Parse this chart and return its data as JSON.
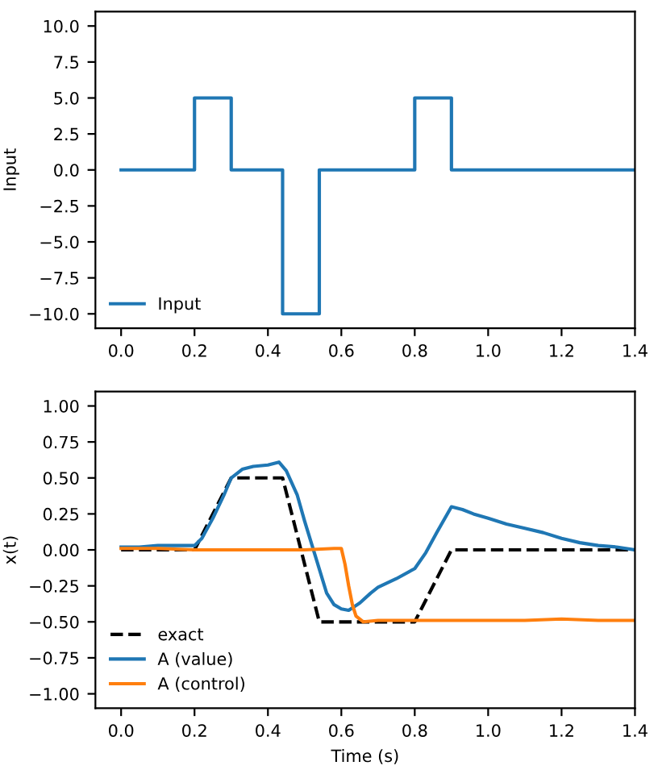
{
  "chart_data": [
    {
      "type": "step",
      "ylabel": "Input",
      "legend": "bottom left",
      "xlim": [
        -0.07,
        1.4
      ],
      "ylim": [
        -11,
        11
      ],
      "xticks": [
        {
          "value": 0,
          "label": "0.0"
        },
        {
          "value": 0.2,
          "label": "0.2"
        },
        {
          "value": 0.4,
          "label": "0.4"
        },
        {
          "value": 0.6,
          "label": "0.6"
        },
        {
          "value": 0.8,
          "label": "0.8"
        },
        {
          "value": 1.0,
          "label": "1.0"
        },
        {
          "value": 1.2,
          "label": "1.2"
        },
        {
          "value": 1.4,
          "label": "1.4"
        }
      ],
      "yticks": [
        {
          "value": -10,
          "label": "−10.0"
        },
        {
          "value": -7.5,
          "label": "−7.5"
        },
        {
          "value": -5,
          "label": "−5.0"
        },
        {
          "value": -2.5,
          "label": "−2.5"
        },
        {
          "value": 0,
          "label": "0.0"
        },
        {
          "value": 2.5,
          "label": "2.5"
        },
        {
          "value": 5,
          "label": "5.0"
        },
        {
          "value": 7.5,
          "label": "7.5"
        },
        {
          "value": 10,
          "label": "10.0"
        }
      ],
      "series": [
        {
          "name": "Input",
          "color": "#1f77b4",
          "x": [
            0,
            0.2,
            0.3,
            0.44,
            0.54,
            0.8,
            0.9,
            1.4
          ],
          "values": [
            0,
            5,
            0,
            -10,
            0,
            5,
            0,
            0
          ]
        }
      ]
    },
    {
      "type": "line",
      "ylabel": "x(t)",
      "xlabel": "Time (s)",
      "legend": "bottom left",
      "xlim": [
        -0.07,
        1.4
      ],
      "ylim": [
        -1.1,
        1.1
      ],
      "xticks": [
        {
          "value": 0,
          "label": "0.0"
        },
        {
          "value": 0.2,
          "label": "0.2"
        },
        {
          "value": 0.4,
          "label": "0.4"
        },
        {
          "value": 0.6,
          "label": "0.6"
        },
        {
          "value": 0.8,
          "label": "0.8"
        },
        {
          "value": 1.0,
          "label": "1.0"
        },
        {
          "value": 1.2,
          "label": "1.2"
        },
        {
          "value": 1.4,
          "label": "1.4"
        }
      ],
      "yticks": [
        {
          "value": -1,
          "label": "−1.00"
        },
        {
          "value": -0.75,
          "label": "−0.75"
        },
        {
          "value": -0.5,
          "label": "−0.50"
        },
        {
          "value": -0.25,
          "label": "−0.25"
        },
        {
          "value": 0,
          "label": "0.00"
        },
        {
          "value": 0.25,
          "label": "0.25"
        },
        {
          "value": 0.5,
          "label": "0.50"
        },
        {
          "value": 0.75,
          "label": "0.75"
        },
        {
          "value": 1,
          "label": "1.00"
        }
      ],
      "series": [
        {
          "name": "exact",
          "color": "#000000",
          "line_style": "dashed",
          "x": [
            0,
            0.2,
            0.3,
            0.44,
            0.54,
            0.8,
            0.9,
            1.4
          ],
          "values": [
            0,
            0,
            0.5,
            0.5,
            -0.5,
            -0.5,
            0,
            0
          ]
        },
        {
          "name": "A (value)",
          "color": "#1f77b4",
          "x": [
            0,
            0.05,
            0.1,
            0.15,
            0.2,
            0.22,
            0.25,
            0.28,
            0.3,
            0.33,
            0.36,
            0.4,
            0.43,
            0.45,
            0.48,
            0.5,
            0.53,
            0.56,
            0.58,
            0.6,
            0.62,
            0.65,
            0.68,
            0.7,
            0.75,
            0.8,
            0.83,
            0.86,
            0.9,
            0.93,
            0.96,
            1.0,
            1.05,
            1.1,
            1.15,
            1.2,
            1.25,
            1.3,
            1.35,
            1.4
          ],
          "values": [
            0.02,
            0.02,
            0.03,
            0.03,
            0.03,
            0.08,
            0.22,
            0.38,
            0.5,
            0.56,
            0.58,
            0.59,
            0.61,
            0.55,
            0.38,
            0.2,
            -0.05,
            -0.3,
            -0.38,
            -0.41,
            -0.42,
            -0.37,
            -0.3,
            -0.26,
            -0.2,
            -0.13,
            -0.02,
            0.12,
            0.3,
            0.28,
            0.25,
            0.22,
            0.18,
            0.15,
            0.12,
            0.08,
            0.05,
            0.03,
            0.02,
            0.0
          ]
        },
        {
          "name": "A (control)",
          "color": "#ff7f0e",
          "x": [
            0,
            0.1,
            0.2,
            0.3,
            0.4,
            0.5,
            0.58,
            0.6,
            0.61,
            0.62,
            0.63,
            0.64,
            0.66,
            0.7,
            0.8,
            0.9,
            1.0,
            1.1,
            1.2,
            1.3,
            1.4
          ],
          "values": [
            0.01,
            0.01,
            0.0,
            0.0,
            0.0,
            0.0,
            0.01,
            0.01,
            -0.1,
            -0.25,
            -0.38,
            -0.46,
            -0.5,
            -0.49,
            -0.49,
            -0.49,
            -0.49,
            -0.49,
            -0.48,
            -0.49,
            -0.49
          ]
        }
      ]
    }
  ]
}
